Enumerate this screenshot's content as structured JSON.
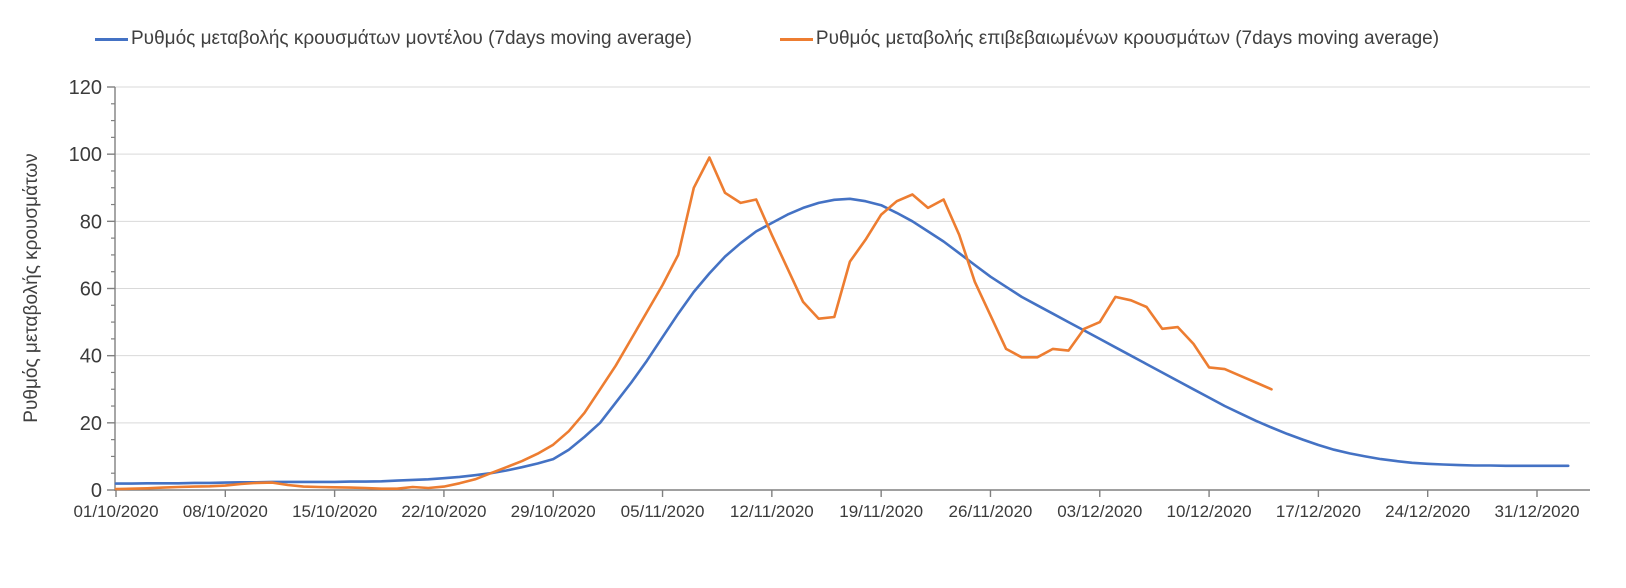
{
  "legend": {
    "model_label": "Ρυθμός μεταβολής κρουσμάτων μοντέλου (7days moving average)",
    "confirmed_label": "Ρυθμός μεταβολής επιβεβαιωμένων κρουσμάτων (7days moving average)"
  },
  "y_axis_title": "Ρυθμός μεταβολής κρουσμάτων",
  "colors": {
    "model_line": "#4472C4",
    "confirmed_line": "#ED7D31",
    "gridline": "#D9D9D9",
    "axis": "#808080",
    "tick_label": "#3B3B3B",
    "text": "#404040"
  },
  "chart_data": {
    "type": "line",
    "title": "",
    "xlabel": "",
    "ylabel": "Ρυθμός μεταβολής κρουσμάτων",
    "ylim": [
      0,
      120
    ],
    "y_ticks": [
      0,
      20,
      40,
      60,
      80,
      100,
      120
    ],
    "y_minor_tick_step": 5,
    "grid": "horizontal-major",
    "legend_position": "top",
    "x_unit": "date, daily points, 2020",
    "x_tick_labels": [
      "01/10/2020",
      "08/10/2020",
      "15/10/2020",
      "22/10/2020",
      "29/10/2020",
      "05/11/2020",
      "12/11/2020",
      "19/11/2020",
      "26/11/2020",
      "03/12/2020",
      "10/12/2020",
      "17/12/2020",
      "24/12/2020",
      "31/12/2020"
    ],
    "x_tick_day_offsets": [
      0,
      7,
      14,
      21,
      28,
      35,
      42,
      49,
      56,
      63,
      70,
      77,
      84,
      91
    ],
    "series": [
      {
        "name": "Ρυθμός μεταβολής κρουσμάτων μοντέλου (7days moving average)",
        "color": "#4472C4",
        "start_day_offset": 0,
        "start_date": "01/10/2020",
        "step_days": 1,
        "values": [
          1.9,
          1.9,
          2,
          2,
          2,
          2.1,
          2.1,
          2.2,
          2.3,
          2.3,
          2.4,
          2.4,
          2.4,
          2.4,
          2.4,
          2.5,
          2.5,
          2.6,
          2.8,
          3,
          3.2,
          3.5,
          3.9,
          4.4,
          5,
          5.8,
          6.8,
          7.9,
          9.2,
          12,
          15.8,
          20,
          26,
          32,
          38.5,
          45.5,
          52.5,
          59,
          64.5,
          69.5,
          73.5,
          77,
          79.5,
          82,
          84,
          85.5,
          86.4,
          86.7,
          86,
          84.8,
          82.5,
          80,
          77,
          74,
          70.5,
          67,
          63.5,
          60.5,
          57.5,
          55,
          52.5,
          50,
          47.5,
          45,
          42.5,
          40,
          37.5,
          35,
          32.5,
          30,
          27.5,
          25,
          22.8,
          20.6,
          18.6,
          16.7,
          15,
          13.4,
          12,
          10.9,
          10,
          9.2,
          8.6,
          8.1,
          7.8,
          7.6,
          7.4,
          7.3,
          7.3,
          7.2,
          7.2,
          7.2,
          7.2,
          7.2
        ]
      },
      {
        "name": "Ρυθμός μεταβολής επιβεβαιωμένων κρουσμάτων (7days moving average)",
        "color": "#ED7D31",
        "start_day_offset": 0,
        "start_date": "01/10/2020",
        "step_days": 1,
        "values": [
          0.3,
          0.4,
          0.5,
          0.7,
          0.9,
          1,
          1.1,
          1.3,
          1.8,
          2.1,
          2.2,
          1.5,
          1,
          0.9,
          0.8,
          0.7,
          0.6,
          0.4,
          0.4,
          0.9,
          0.6,
          1,
          2,
          3.2,
          5,
          6.8,
          8.6,
          10.8,
          13.5,
          17.5,
          23,
          30,
          37,
          45,
          53,
          61,
          70,
          90,
          99,
          88.5,
          85.5,
          86.5,
          76,
          66,
          56,
          51,
          51.5,
          68,
          74.5,
          82,
          86,
          88,
          84,
          86.5,
          76,
          62,
          52,
          42,
          39.5,
          39.5,
          42,
          41.5,
          48,
          50,
          57.5,
          56.5,
          54.5,
          48,
          48.5,
          43.5,
          36.5,
          36,
          34,
          32,
          30
        ]
      }
    ]
  }
}
